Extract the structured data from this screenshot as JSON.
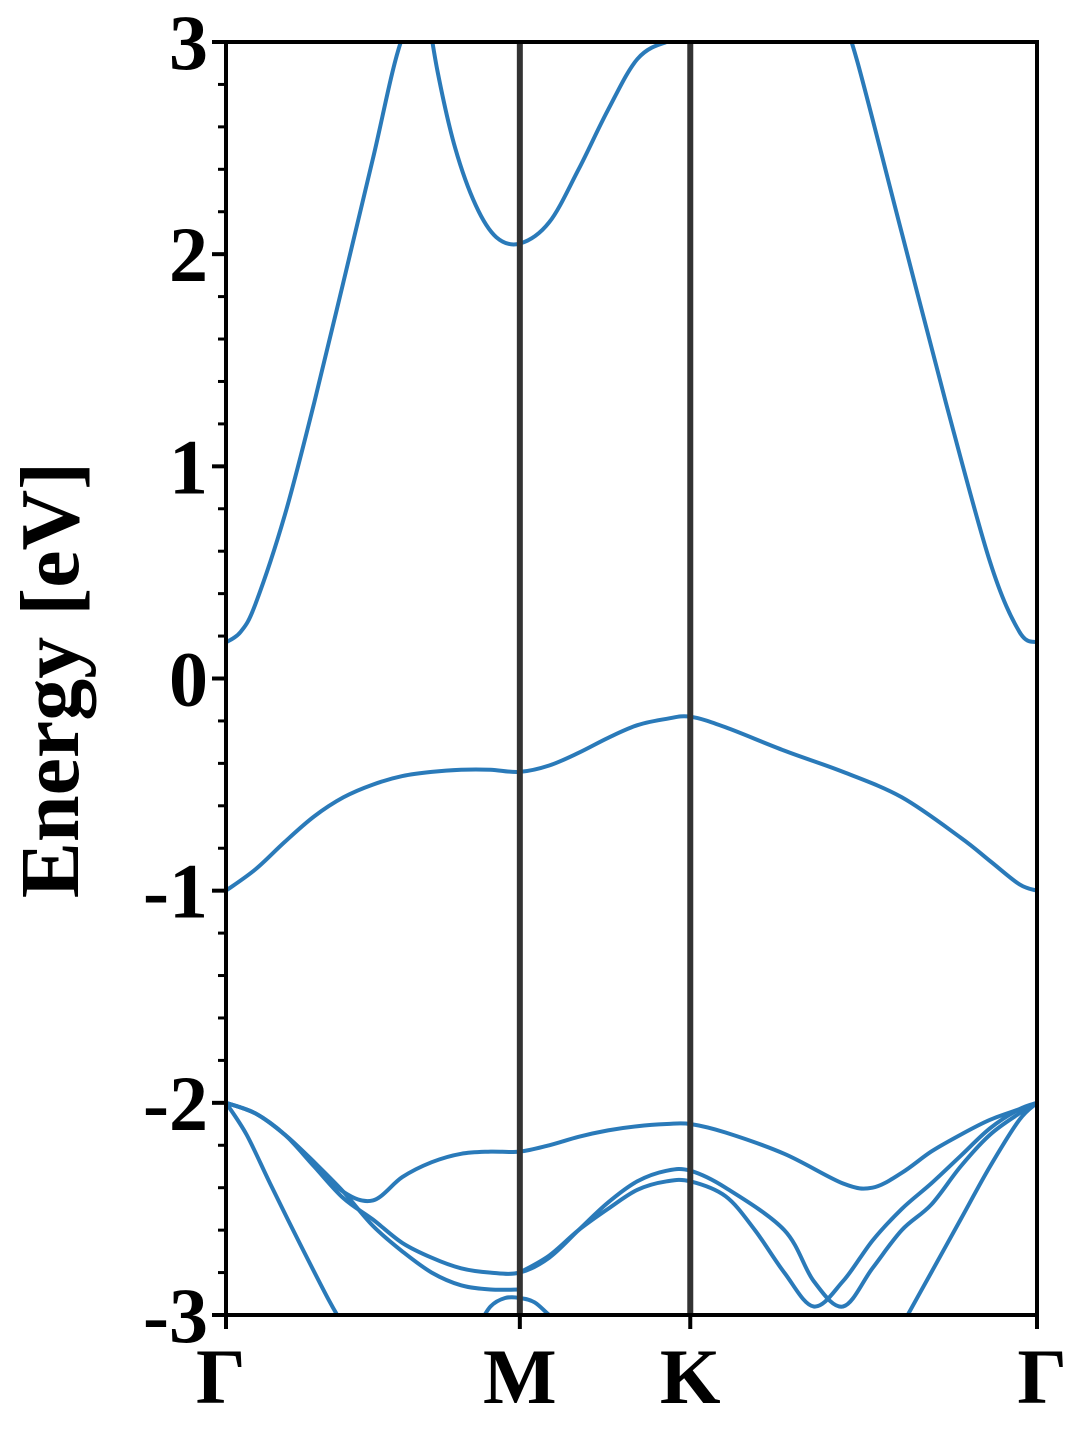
{
  "chart_data": {
    "type": "line",
    "title": "",
    "xlabel": "",
    "ylabel": "Energy [eV]",
    "ylim": [
      -3,
      3
    ],
    "xlim": [
      0,
      2.76
    ],
    "grid": false,
    "legend": "none",
    "line_color": "#2a7ab9",
    "high_symmetry_line_color": "#333333",
    "high_symmetry_points": [
      {
        "label": "Γ",
        "x": 0
      },
      {
        "label": "M",
        "x": 1.0
      },
      {
        "label": "K",
        "x": 1.58
      },
      {
        "label": "Γ",
        "x": 2.76
      }
    ],
    "yticks": [
      {
        "label": "3",
        "value": 3
      },
      {
        "label": "2",
        "value": 2
      },
      {
        "label": "1",
        "value": 1
      },
      {
        "label": "0",
        "value": 0
      },
      {
        "label": "-1",
        "value": -1
      },
      {
        "label": "-2",
        "value": -2
      },
      {
        "label": "-3",
        "value": -3
      }
    ],
    "series": [
      {
        "x": [
          0,
          0.05,
          0.1,
          0.2,
          0.3,
          0.4,
          0.5,
          0.6,
          0.7
        ],
        "y": [
          0.17,
          0.22,
          0.35,
          0.77,
          1.3,
          1.87,
          2.45,
          3.02,
          3.2
        ]
      },
      {
        "x": [
          0.68,
          0.72,
          0.78,
          0.85,
          0.92,
          1.0,
          1.1,
          1.2,
          1.3,
          1.4,
          1.5,
          1.58,
          1.7
        ],
        "y": [
          3.2,
          2.86,
          2.5,
          2.23,
          2.08,
          2.05,
          2.15,
          2.4,
          2.68,
          2.92,
          3.0,
          3.0,
          3.0
        ]
      },
      {
        "x": [
          2.08,
          2.15,
          2.3,
          2.45,
          2.6,
          2.7,
          2.76
        ],
        "y": [
          3.2,
          2.9,
          2.1,
          1.3,
          0.55,
          0.22,
          0.17
        ]
      },
      {
        "x": [
          0,
          0.1,
          0.2,
          0.3,
          0.4,
          0.5,
          0.6,
          0.7,
          0.8,
          0.9,
          1.0,
          1.1,
          1.2,
          1.3,
          1.4,
          1.5,
          1.58,
          1.7,
          1.9,
          2.1,
          2.3,
          2.5,
          2.6,
          2.7,
          2.76
        ],
        "y": [
          -1.0,
          -0.9,
          -0.77,
          -0.65,
          -0.56,
          -0.5,
          -0.46,
          -0.44,
          -0.43,
          -0.43,
          -0.44,
          -0.41,
          -0.35,
          -0.28,
          -0.22,
          -0.19,
          -0.18,
          -0.23,
          -0.34,
          -0.44,
          -0.56,
          -0.75,
          -0.86,
          -0.97,
          -1.0
        ]
      },
      {
        "x": [
          0,
          0.1,
          0.2,
          0.3,
          0.4,
          0.5,
          0.6,
          0.7,
          0.8,
          0.9,
          1.0
        ],
        "y": [
          -2.0,
          -2.05,
          -2.15,
          -2.28,
          -2.42,
          -2.58,
          -2.7,
          -2.8,
          -2.86,
          -2.88,
          -2.88
        ]
      },
      {
        "x": [
          0,
          0.1,
          0.2,
          0.3,
          0.4,
          0.5,
          0.6,
          0.7,
          0.8,
          0.9,
          1.0,
          1.1,
          1.2,
          1.3,
          1.4,
          1.5,
          1.58,
          1.7,
          1.9,
          2.0,
          2.1,
          2.2,
          2.3,
          2.4,
          2.5,
          2.6,
          2.7,
          2.76
        ],
        "y": [
          -2.0,
          -2.05,
          -2.15,
          -2.3,
          -2.45,
          -2.55,
          -2.66,
          -2.73,
          -2.78,
          -2.8,
          -2.8,
          -2.73,
          -2.6,
          -2.47,
          -2.37,
          -2.32,
          -2.32,
          -2.4,
          -2.6,
          -2.84,
          -2.96,
          -2.78,
          -2.6,
          -2.48,
          -2.3,
          -2.15,
          -2.05,
          -2.0
        ]
      },
      {
        "x": [
          0,
          0.1,
          0.2,
          0.3,
          0.4,
          0.5,
          0.6,
          0.7,
          0.8,
          0.9,
          1.0,
          1.1,
          1.2,
          1.3,
          1.4,
          1.5,
          1.58,
          1.7,
          1.9,
          2.1,
          2.2,
          2.3,
          2.4,
          2.5,
          2.6,
          2.7,
          2.76
        ],
        "y": [
          -2.0,
          -2.05,
          -2.15,
          -2.28,
          -2.42,
          -2.46,
          -2.35,
          -2.28,
          -2.24,
          -2.23,
          -2.23,
          -2.2,
          -2.16,
          -2.13,
          -2.11,
          -2.1,
          -2.1,
          -2.14,
          -2.24,
          -2.38,
          -2.4,
          -2.33,
          -2.23,
          -2.15,
          -2.08,
          -2.03,
          -2.0
        ]
      },
      {
        "x": [
          0,
          0.07,
          0.15,
          0.25,
          0.35,
          0.4
        ],
        "y": [
          -2.0,
          -2.15,
          -2.38,
          -2.66,
          -2.93,
          -3.05
        ]
      },
      {
        "x": [
          1.0,
          1.1,
          1.2,
          1.3,
          1.4,
          1.5,
          1.58,
          1.7,
          1.8,
          1.9,
          2.0,
          2.1,
          2.2,
          2.3,
          2.4,
          2.5,
          2.6,
          2.7,
          2.76
        ],
        "y": [
          -2.8,
          -2.72,
          -2.6,
          -2.5,
          -2.41,
          -2.37,
          -2.37,
          -2.44,
          -2.6,
          -2.8,
          -2.96,
          -2.84,
          -2.65,
          -2.5,
          -2.38,
          -2.25,
          -2.12,
          -2.03,
          -2.0
        ]
      },
      {
        "x": [
          2.3,
          2.4,
          2.5,
          2.6,
          2.7,
          2.76
        ],
        "y": [
          -3.05,
          -2.8,
          -2.55,
          -2.3,
          -2.08,
          -2.0
        ]
      },
      {
        "x": [
          0.86,
          0.9,
          0.95,
          1.0,
          1.05,
          1.1,
          1.15
        ],
        "y": [
          -3.05,
          -2.96,
          -2.92,
          -2.92,
          -2.94,
          -3.0,
          -3.05
        ]
      }
    ]
  }
}
